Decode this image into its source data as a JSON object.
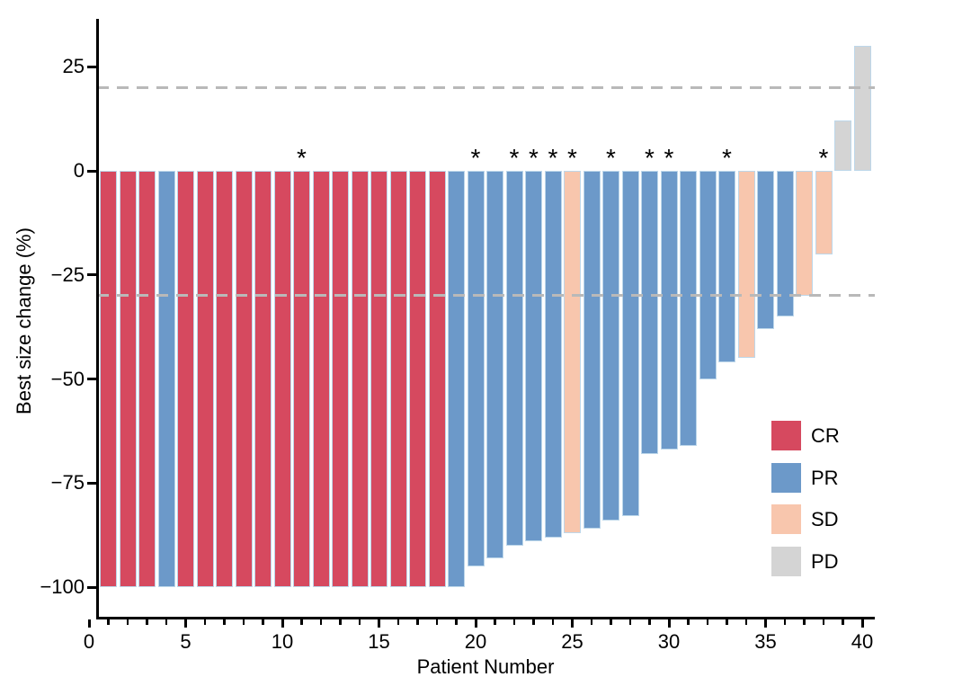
{
  "figure": {
    "background": "#ffffff",
    "axis_color": "#000000"
  },
  "chart_data": {
    "type": "bar",
    "subtype": "waterfall",
    "title": "",
    "xlabel": "Patient Number",
    "ylabel": "Best size change (%)",
    "xlim": [
      0,
      41
    ],
    "ylim": [
      -107,
      36
    ],
    "grid": "off",
    "x_tick_labels": [
      "0",
      "5",
      "10",
      "15",
      "20",
      "25",
      "30",
      "35",
      "40"
    ],
    "x_major_tick_values": [
      0,
      5,
      10,
      15,
      20,
      25,
      30,
      35,
      40
    ],
    "x_minor_tick_every": 1,
    "y_tick_labels": [
      "25",
      "0",
      "−25",
      "−50",
      "−75",
      "−100"
    ],
    "y_tick_values": [
      25,
      0,
      -25,
      -50,
      -75,
      -100
    ],
    "reference_lines": {
      "values": [
        20,
        -30
      ],
      "style": "dashed",
      "color": "#b9b9b9"
    },
    "annotation_marker": "*",
    "legend": {
      "position": "right-middle",
      "entries": [
        {
          "label": "CR",
          "color": "#d6495f"
        },
        {
          "label": "PR",
          "color": "#6c99c9"
        },
        {
          "label": "SD",
          "color": "#f8c6ad"
        },
        {
          "label": "PD",
          "color": "#d4d4d4"
        }
      ]
    },
    "patients": [
      {
        "n": 1,
        "value": -100,
        "response": "CR",
        "star": false
      },
      {
        "n": 2,
        "value": -100,
        "response": "CR",
        "star": false
      },
      {
        "n": 3,
        "value": -100,
        "response": "CR",
        "star": false
      },
      {
        "n": 4,
        "value": -100,
        "response": "PR",
        "star": false
      },
      {
        "n": 5,
        "value": -100,
        "response": "CR",
        "star": false
      },
      {
        "n": 6,
        "value": -100,
        "response": "CR",
        "star": false
      },
      {
        "n": 7,
        "value": -100,
        "response": "CR",
        "star": false
      },
      {
        "n": 8,
        "value": -100,
        "response": "CR",
        "star": false
      },
      {
        "n": 9,
        "value": -100,
        "response": "CR",
        "star": false
      },
      {
        "n": 10,
        "value": -100,
        "response": "CR",
        "star": false
      },
      {
        "n": 11,
        "value": -100,
        "response": "CR",
        "star": true
      },
      {
        "n": 12,
        "value": -100,
        "response": "CR",
        "star": false
      },
      {
        "n": 13,
        "value": -100,
        "response": "CR",
        "star": false
      },
      {
        "n": 14,
        "value": -100,
        "response": "CR",
        "star": false
      },
      {
        "n": 15,
        "value": -100,
        "response": "CR",
        "star": false
      },
      {
        "n": 16,
        "value": -100,
        "response": "CR",
        "star": false
      },
      {
        "n": 17,
        "value": -100,
        "response": "CR",
        "star": false
      },
      {
        "n": 18,
        "value": -100,
        "response": "CR",
        "star": false
      },
      {
        "n": 19,
        "value": -100,
        "response": "PR",
        "star": false
      },
      {
        "n": 20,
        "value": -95,
        "response": "PR",
        "star": true
      },
      {
        "n": 21,
        "value": -93,
        "response": "PR",
        "star": false
      },
      {
        "n": 22,
        "value": -90,
        "response": "PR",
        "star": true
      },
      {
        "n": 23,
        "value": -89,
        "response": "PR",
        "star": true
      },
      {
        "n": 24,
        "value": -88,
        "response": "PR",
        "star": true
      },
      {
        "n": 25,
        "value": -87,
        "response": "SD",
        "star": true
      },
      {
        "n": 26,
        "value": -86,
        "response": "PR",
        "star": false
      },
      {
        "n": 27,
        "value": -84,
        "response": "PR",
        "star": true
      },
      {
        "n": 28,
        "value": -83,
        "response": "PR",
        "star": false
      },
      {
        "n": 29,
        "value": -68,
        "response": "PR",
        "star": true
      },
      {
        "n": 30,
        "value": -67,
        "response": "PR",
        "star": true
      },
      {
        "n": 31,
        "value": -66,
        "response": "PR",
        "star": false
      },
      {
        "n": 32,
        "value": -50,
        "response": "PR",
        "star": false
      },
      {
        "n": 33,
        "value": -46,
        "response": "PR",
        "star": true
      },
      {
        "n": 34,
        "value": -45,
        "response": "SD",
        "star": false
      },
      {
        "n": 35,
        "value": -38,
        "response": "PR",
        "star": false
      },
      {
        "n": 36,
        "value": -35,
        "response": "PR",
        "star": false
      },
      {
        "n": 37,
        "value": -30,
        "response": "SD",
        "star": false
      },
      {
        "n": 38,
        "value": -20,
        "response": "SD",
        "star": true
      },
      {
        "n": 39,
        "value": 12,
        "response": "PD",
        "star": false
      },
      {
        "n": 40,
        "value": 30,
        "response": "PD",
        "star": false
      }
    ]
  }
}
